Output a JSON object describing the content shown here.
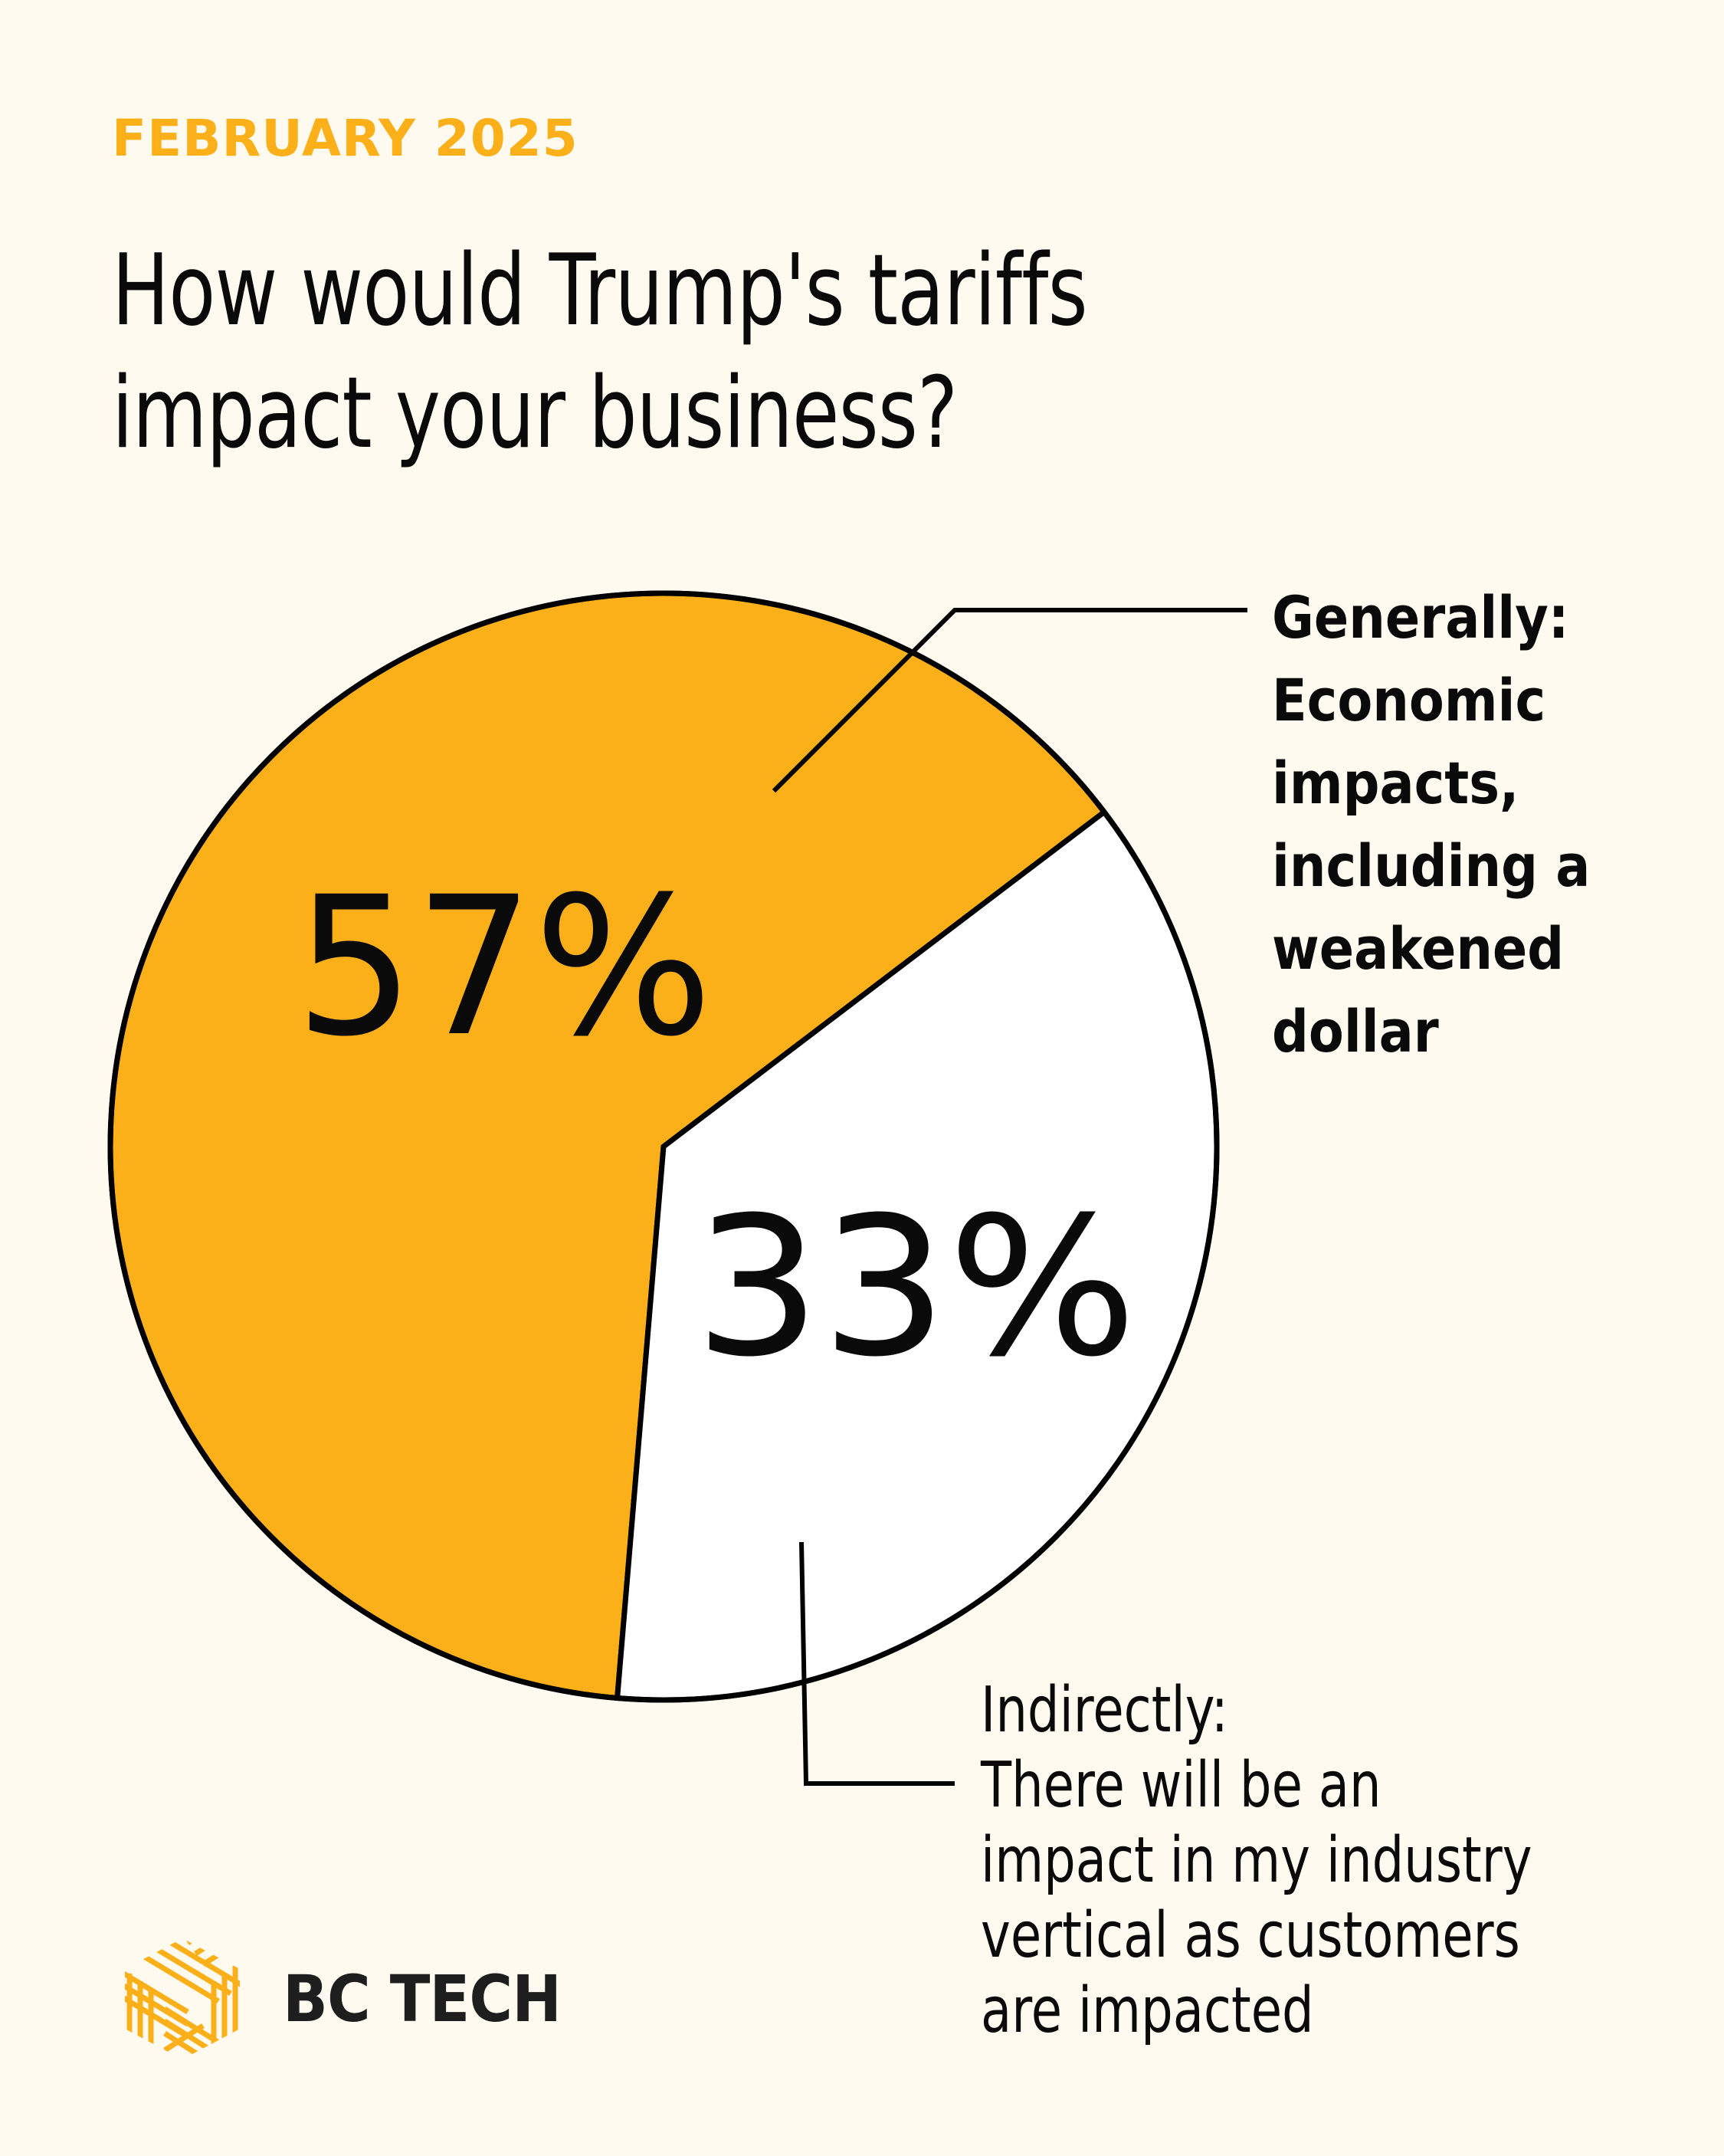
{
  "header": {
    "date": "FEBRUARY 2025",
    "title_lines": [
      "How would Trump's tariffs",
      "impact your business?"
    ]
  },
  "colors": {
    "background": "#fffaf0",
    "accent": "#fbb01a",
    "secondary_slice": "#ffffff",
    "ink": "#0a0a0a"
  },
  "chart_data": {
    "type": "pie",
    "title": "How would Trump's tariffs impact your business?",
    "subtitle": "FEBRUARY 2025",
    "slices": [
      {
        "label": "Generally: Economic impacts, including a weakened dollar",
        "value": 57,
        "value_label": "57%",
        "color": "#fbb01a",
        "label_lines": [
          "Generally:",
          "Economic",
          "impacts,",
          "including a",
          "weakened",
          "dollar"
        ],
        "label_style": "bold",
        "label_position": "top-right"
      },
      {
        "label": "Indirectly: There will be an impact in my industry vertical as customers are impacted",
        "value": 33,
        "value_label": "33%",
        "color": "#ffffff",
        "label_lines": [
          "Indirectly:",
          "There will be an",
          "impact in my industry",
          "vertical as customers",
          "are impacted"
        ],
        "label_style": "regular",
        "label_position": "bottom-right"
      }
    ]
  },
  "brand": {
    "name": "BC TECH",
    "logo_icon": "woven-hexagon-logo-icon"
  }
}
